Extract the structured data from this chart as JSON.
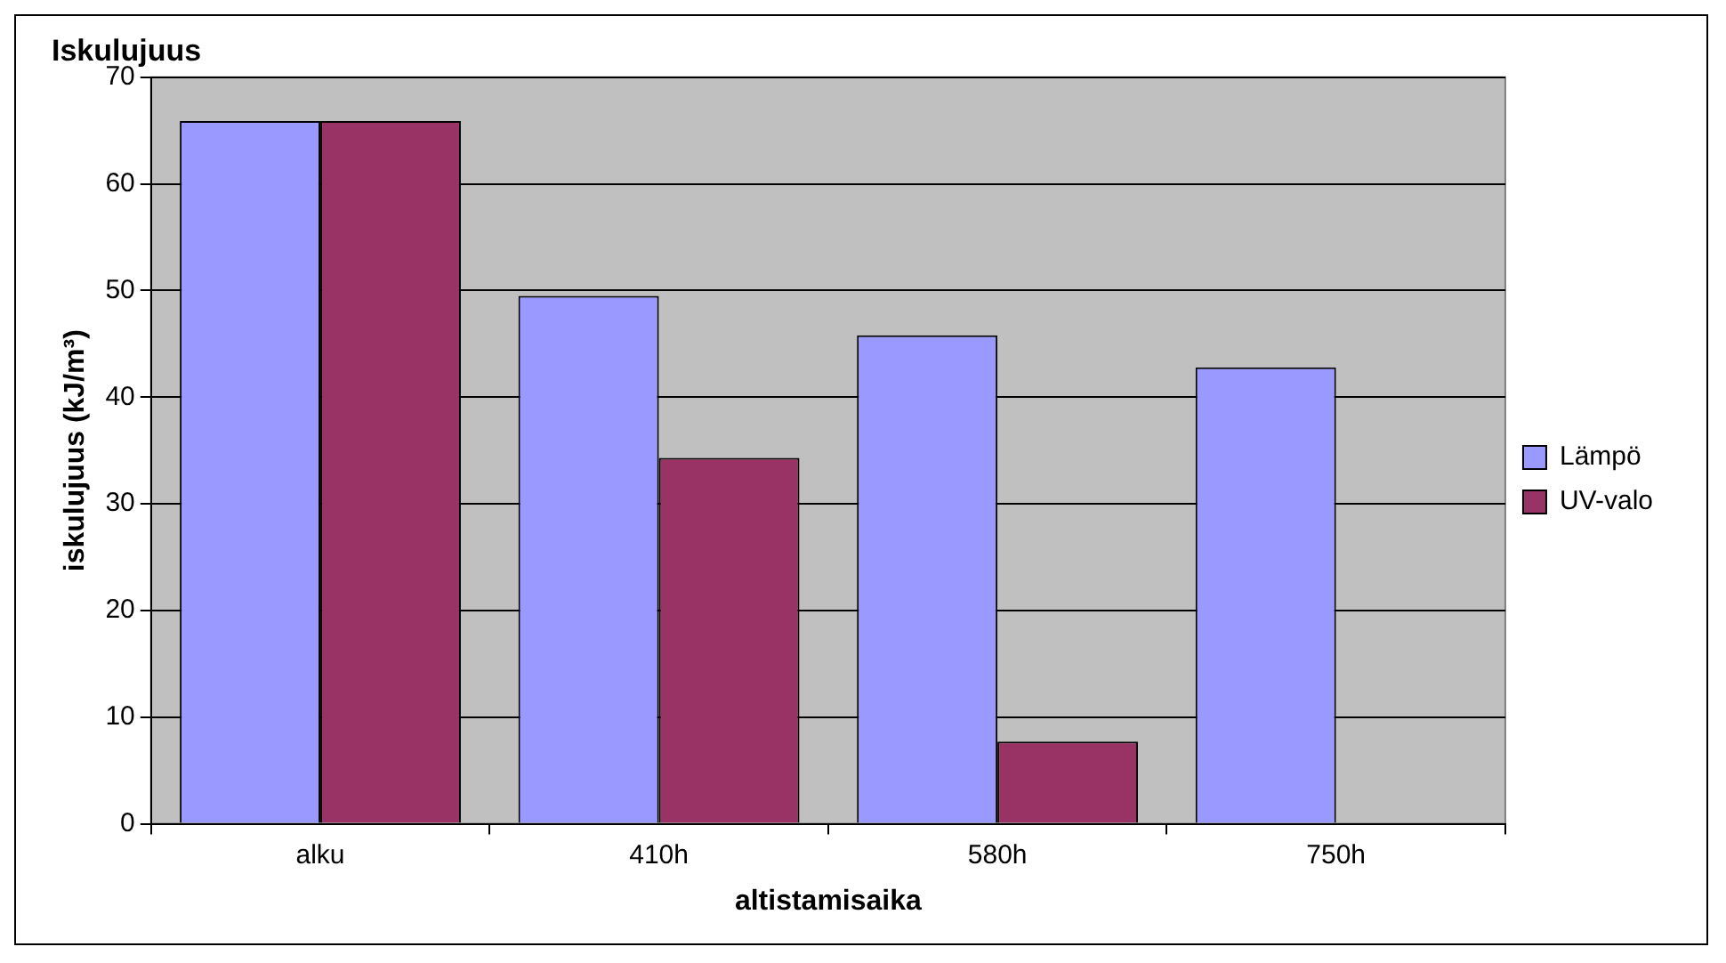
{
  "chart_data": {
    "type": "bar",
    "title": "Iskulujuus",
    "xlabel": "altistamisaika",
    "ylabel": "iskulujuus (kJ/m³)",
    "categories": [
      "alku",
      "410h",
      "580h",
      "750h"
    ],
    "series": [
      {
        "name": "Lämpö",
        "color": "#9999ff",
        "values": [
          65.9,
          49.5,
          45.8,
          42.8
        ]
      },
      {
        "name": "UV-valo",
        "color": "#993366",
        "values": [
          65.9,
          34.3,
          7.7,
          null
        ]
      }
    ],
    "ylim": [
      0,
      70
    ],
    "yticks": [
      0,
      10,
      20,
      30,
      40,
      50,
      60,
      70
    ],
    "grid": "y",
    "legend": "right"
  }
}
